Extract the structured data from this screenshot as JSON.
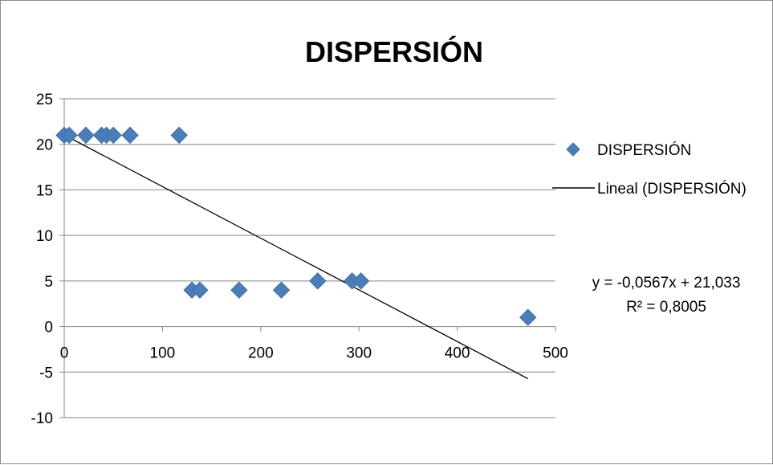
{
  "chart_data": {
    "type": "scatter",
    "title": "DISPERSIÓN",
    "xlabel": "",
    "ylabel": "",
    "xlim": [
      0,
      500
    ],
    "ylim": [
      -10,
      25
    ],
    "x_ticks": [
      0,
      100,
      200,
      300,
      400,
      500
    ],
    "y_ticks": [
      -10,
      -5,
      0,
      5,
      10,
      15,
      20,
      25
    ],
    "grid": "horizontal",
    "legend_position": "right",
    "series": [
      {
        "name": "DISPERSIÓN",
        "marker": "diamond",
        "color": "#4a7ebb",
        "points": [
          {
            "x": 0,
            "y": 21
          },
          {
            "x": 5,
            "y": 21
          },
          {
            "x": 22,
            "y": 21
          },
          {
            "x": 38,
            "y": 21
          },
          {
            "x": 43,
            "y": 21
          },
          {
            "x": 50,
            "y": 21
          },
          {
            "x": 67,
            "y": 21
          },
          {
            "x": 117,
            "y": 21
          },
          {
            "x": 130,
            "y": 4
          },
          {
            "x": 138,
            "y": 4
          },
          {
            "x": 178,
            "y": 4
          },
          {
            "x": 221,
            "y": 4
          },
          {
            "x": 258,
            "y": 5
          },
          {
            "x": 293,
            "y": 5
          },
          {
            "x": 302,
            "y": 5
          },
          {
            "x": 472,
            "y": 1
          }
        ]
      }
    ],
    "trendline": {
      "name": "Lineal (DISPERSIÓN)",
      "slope": -0.0567,
      "intercept": 21.033,
      "x_range": [
        0,
        472
      ],
      "color": "#000000"
    },
    "annotations": {
      "equation": "y = -0,0567x + 21,033",
      "r_squared": "R² = 0,8005"
    }
  }
}
